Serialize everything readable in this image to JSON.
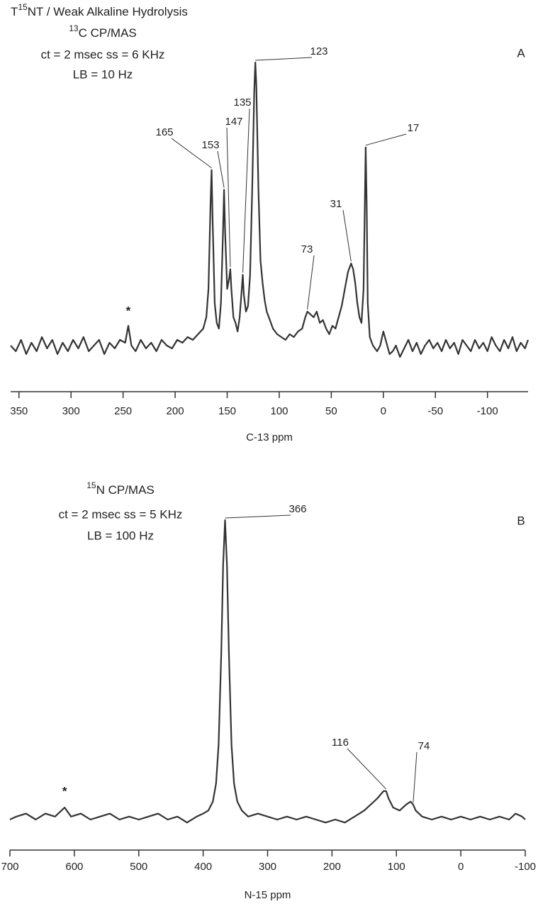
{
  "chart_data": [
    {
      "type": "line",
      "color": "#333333",
      "title": {
        "pre": "T",
        "sup": "15",
        "text": "NT / Weak Alkaline Hydrolysis"
      },
      "subtitle": {
        "sup": "13",
        "text": "C CP/MAS"
      },
      "lines": [
        "ct = 2 msec   ss = 6 KHz",
        "LB = 10 Hz"
      ],
      "panel_label": "A",
      "xlabel": "C-13 ppm",
      "xlim": [
        358,
        -139
      ],
      "xticks": [
        350,
        300,
        250,
        200,
        150,
        100,
        50,
        0,
        -50,
        -100
      ],
      "x": [
        358,
        353,
        348,
        343,
        338,
        333,
        328,
        323,
        318,
        313,
        308,
        303,
        298,
        293,
        288,
        283,
        278,
        273,
        268,
        263,
        258,
        253,
        248,
        245,
        242,
        238,
        233,
        228,
        223,
        218,
        213,
        208,
        203,
        198,
        193,
        188,
        183,
        178,
        173,
        170,
        168,
        166,
        165,
        164,
        162,
        160,
        158,
        156,
        154,
        153,
        152,
        150,
        148,
        147,
        146,
        144,
        142,
        140,
        138,
        136,
        135,
        134,
        132,
        130,
        128,
        126,
        124,
        123,
        122,
        120,
        118,
        116,
        114,
        112,
        110,
        106,
        102,
        98,
        94,
        90,
        86,
        82,
        78,
        75,
        73,
        70,
        67,
        64,
        61,
        58,
        55,
        52,
        49,
        46,
        43,
        40,
        37,
        34,
        31,
        29,
        27,
        25,
        23,
        21,
        19,
        18,
        17,
        16,
        15,
        13,
        10,
        6,
        3,
        0,
        -3,
        -6,
        -9,
        -12,
        -16,
        -20,
        -24,
        -28,
        -32,
        -36,
        -40,
        -44,
        -48,
        -52,
        -56,
        -60,
        -64,
        -68,
        -72,
        -76,
        -80,
        -84,
        -88,
        -92,
        -96,
        -100,
        -104,
        -108,
        -112,
        -116,
        -120,
        -124,
        -128,
        -132,
        -136,
        -139
      ],
      "values": [
        0,
        -2,
        2,
        -3,
        1,
        -2,
        3,
        -1,
        2,
        -3,
        1,
        -2,
        2,
        -1,
        3,
        -2,
        0,
        2,
        -3,
        1,
        -1,
        2,
        1,
        7,
        0,
        -2,
        2,
        -1,
        1,
        -2,
        2,
        0,
        -1,
        2,
        1,
        3,
        2,
        4,
        6,
        10,
        20,
        50,
        62,
        45,
        15,
        8,
        6,
        15,
        40,
        55,
        40,
        20,
        24,
        27,
        20,
        10,
        8,
        5,
        10,
        20,
        25,
        18,
        12,
        14,
        25,
        55,
        90,
        100,
        92,
        55,
        30,
        22,
        16,
        12,
        10,
        6,
        4,
        3,
        2,
        4,
        3,
        5,
        6,
        10,
        12,
        11,
        10,
        12,
        8,
        9,
        6,
        4,
        7,
        6,
        10,
        14,
        20,
        26,
        29,
        27,
        22,
        15,
        10,
        8,
        20,
        45,
        70,
        50,
        15,
        3,
        0,
        -2,
        0,
        5,
        1,
        -3,
        -2,
        0,
        -4,
        -1,
        2,
        -2,
        1,
        -3,
        0,
        2,
        -1,
        1,
        -2,
        2,
        -1,
        1,
        -3,
        2,
        0,
        -2,
        2,
        -1,
        1,
        -2,
        3,
        0,
        -2,
        2,
        -1,
        3,
        -2,
        1,
        -1,
        2
      ],
      "peaks": [
        165,
        153,
        147,
        135,
        123,
        73,
        31,
        17
      ],
      "annotations": [
        {
          "text": "*",
          "x": 245
        }
      ]
    },
    {
      "type": "line",
      "color": "#333333",
      "subtitle": {
        "sup": "15",
        "text": "N CP/MAS"
      },
      "lines": [
        "ct = 2 msec   ss = 5 KHz",
        "LB = 100 Hz"
      ],
      "panel_label": "B",
      "xlabel": "N-15 ppm",
      "xlim": [
        700,
        -100
      ],
      "xticks": [
        700,
        600,
        500,
        400,
        300,
        200,
        100,
        0,
        -100
      ],
      "x": [
        700,
        690,
        675,
        660,
        645,
        630,
        615,
        605,
        590,
        575,
        560,
        545,
        530,
        515,
        500,
        485,
        470,
        455,
        440,
        425,
        410,
        400,
        392,
        385,
        380,
        376,
        372,
        369,
        366,
        363,
        360,
        356,
        352,
        347,
        340,
        330,
        315,
        300,
        285,
        270,
        255,
        240,
        225,
        210,
        195,
        180,
        165,
        150,
        140,
        130,
        120,
        116,
        112,
        105,
        95,
        85,
        78,
        74,
        70,
        60,
        45,
        30,
        15,
        0,
        -15,
        -30,
        -45,
        -60,
        -75,
        -85,
        -95,
        -100
      ],
      "values": [
        0,
        1,
        2,
        0,
        2,
        1,
        4,
        1,
        2,
        0,
        1,
        2,
        0,
        1,
        0,
        1,
        2,
        0,
        1,
        -1,
        1,
        2,
        3,
        6,
        12,
        25,
        55,
        85,
        100,
        85,
        55,
        25,
        12,
        6,
        3,
        1,
        2,
        1,
        0,
        1,
        0,
        1,
        0,
        -1,
        0,
        -1,
        1,
        3,
        5,
        7,
        9.5,
        9.5,
        7,
        4,
        3,
        5,
        6,
        5,
        3,
        1,
        0,
        1,
        0,
        1,
        0,
        1,
        0,
        1,
        0,
        2,
        1,
        0
      ],
      "peaks": [
        366,
        116,
        74
      ],
      "annotations": [
        {
          "text": "*",
          "x": 615
        }
      ]
    }
  ]
}
